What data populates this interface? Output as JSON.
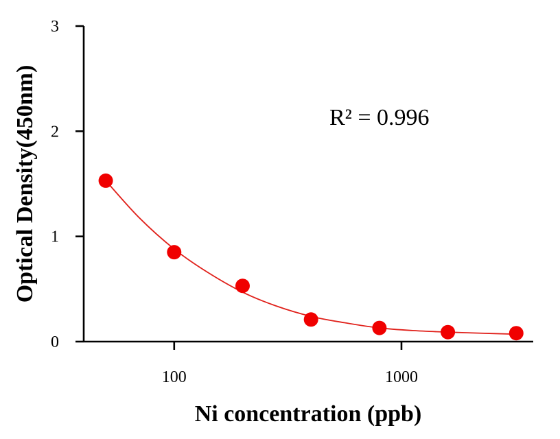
{
  "chart_data": {
    "type": "scatter",
    "title": "",
    "xlabel": "Ni concentration (ppb)",
    "ylabel": "Optical Density(450nm)",
    "x_scale": "log",
    "xlim": [
      40,
      3800
    ],
    "ylim": [
      0,
      3
    ],
    "x_ticks": [
      100,
      1000
    ],
    "x_tick_labels": [
      "100",
      "1000"
    ],
    "y_ticks": [
      0,
      1,
      2,
      3
    ],
    "y_tick_labels": [
      "0",
      "1",
      "2",
      "3"
    ],
    "grid": false,
    "legend": "none",
    "annotation": "R² = 0.996",
    "marker_color": "#f00000",
    "line_color": "#e0201a",
    "series": [
      {
        "x": [
          50,
          100,
          200,
          400,
          800,
          1600,
          3200
        ],
        "y": [
          1.53,
          0.85,
          0.53,
          0.21,
          0.13,
          0.09,
          0.08
        ]
      }
    ],
    "fit_curve": {
      "x": [
        50,
        70,
        100,
        140,
        200,
        280,
        400,
        560,
        800,
        1120,
        1600,
        2240,
        3200
      ],
      "y": [
        1.53,
        1.18,
        0.88,
        0.66,
        0.47,
        0.34,
        0.24,
        0.18,
        0.13,
        0.105,
        0.09,
        0.08,
        0.07
      ]
    }
  }
}
